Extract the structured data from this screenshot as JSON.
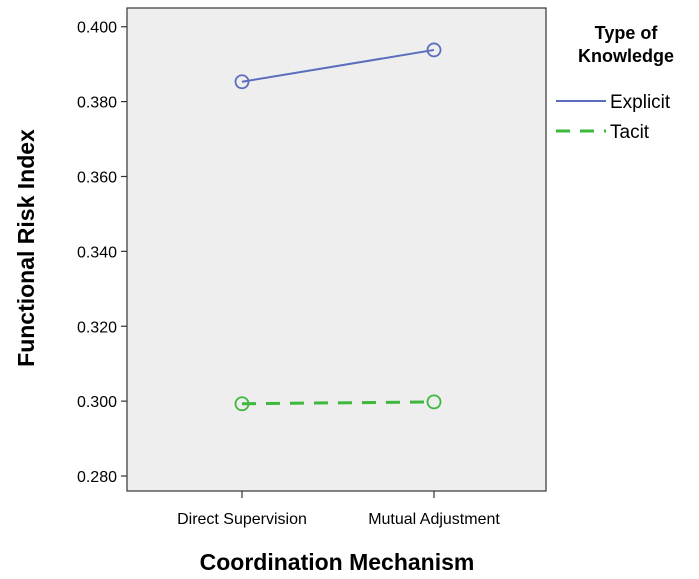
{
  "chart_data": {
    "type": "line",
    "xlabel": "Coordination Mechanism",
    "ylabel": "Functional Risk Index",
    "categories": [
      "Direct Supervision",
      "Mutual Adjustment"
    ],
    "yticks": [
      "0.280",
      "0.300",
      "0.320",
      "0.340",
      "0.360",
      "0.380",
      "0.400"
    ],
    "ylim": [
      0.276,
      0.405
    ],
    "legend": {
      "title_line1": "Type of",
      "title_line2": "Knowledge",
      "placement": "right"
    },
    "series": [
      {
        "name": "Explicit",
        "values": [
          0.3853,
          0.3938
        ],
        "color": "#5b6dbd",
        "style": "solid"
      },
      {
        "name": "Tacit",
        "values": [
          0.2993,
          0.2998
        ],
        "color": "#3db83d",
        "style": "dashed"
      }
    ],
    "background": "#eeeeee",
    "grid": false
  }
}
